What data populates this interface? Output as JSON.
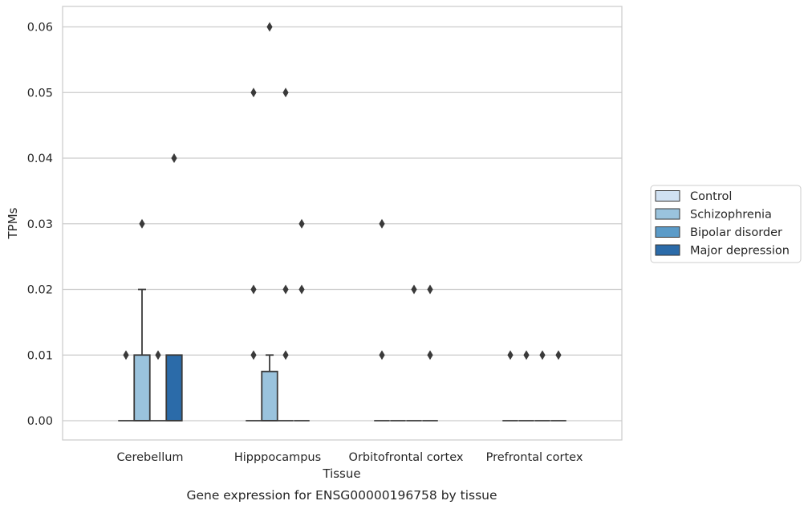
{
  "chart_data": {
    "type": "box",
    "title": "",
    "caption": "Gene expression for ENSG00000196758 by tissue",
    "xlabel": "Tissue",
    "ylabel": "TPMs",
    "ylim": [
      -0.003,
      0.063
    ],
    "yticks": [
      "0.00",
      "0.01",
      "0.02",
      "0.03",
      "0.04",
      "0.05",
      "0.06"
    ],
    "categories": [
      "Cerebellum",
      "Hipppocampus",
      "Orbitofrontal cortex",
      "Prefrontal cortex"
    ],
    "grid": "horizontal",
    "legend_position": "right",
    "series": [
      {
        "name": "Control",
        "color": "#d0e1f2",
        "boxes": [
          {
            "q1": 0,
            "median": 0,
            "q3": 0,
            "whisker_low": 0,
            "whisker_high": 0,
            "outliers": [
              0.01
            ]
          },
          {
            "q1": 0,
            "median": 0,
            "q3": 0,
            "whisker_low": 0,
            "whisker_high": 0,
            "outliers": [
              0.01,
              0.02,
              0.05
            ]
          },
          {
            "q1": 0,
            "median": 0,
            "q3": 0,
            "whisker_low": 0,
            "whisker_high": 0,
            "outliers": [
              0.01,
              0.03
            ]
          },
          {
            "q1": 0,
            "median": 0,
            "q3": 0,
            "whisker_low": 0,
            "whisker_high": 0,
            "outliers": [
              0.01
            ]
          }
        ]
      },
      {
        "name": "Schizophrenia",
        "color": "#9ac3dd",
        "boxes": [
          {
            "q1": 0,
            "median": 0,
            "q3": 0.01,
            "whisker_low": 0,
            "whisker_high": 0.02,
            "outliers": [
              0.03
            ]
          },
          {
            "q1": 0,
            "median": 0,
            "q3": 0.0075,
            "whisker_low": 0,
            "whisker_high": 0.01,
            "outliers": [
              0.06
            ]
          },
          {
            "q1": 0,
            "median": 0,
            "q3": 0,
            "whisker_low": 0,
            "whisker_high": 0,
            "outliers": []
          },
          {
            "q1": 0,
            "median": 0,
            "q3": 0,
            "whisker_low": 0,
            "whisker_high": 0,
            "outliers": [
              0.01
            ]
          }
        ]
      },
      {
        "name": "Bipolar disorder",
        "color": "#5b9bc8",
        "boxes": [
          {
            "q1": 0,
            "median": 0,
            "q3": 0,
            "whisker_low": 0,
            "whisker_high": 0,
            "outliers": [
              0.01
            ]
          },
          {
            "q1": 0,
            "median": 0,
            "q3": 0,
            "whisker_low": 0,
            "whisker_high": 0,
            "outliers": [
              0.01,
              0.02,
              0.05
            ]
          },
          {
            "q1": 0,
            "median": 0,
            "q3": 0,
            "whisker_low": 0,
            "whisker_high": 0,
            "outliers": [
              0.02
            ]
          },
          {
            "q1": 0,
            "median": 0,
            "q3": 0,
            "whisker_low": 0,
            "whisker_high": 0,
            "outliers": [
              0.01
            ]
          }
        ]
      },
      {
        "name": "Major depression",
        "color": "#2b6ba9",
        "boxes": [
          {
            "q1": 0,
            "median": 0,
            "q3": 0.01,
            "whisker_low": 0,
            "whisker_high": 0.01,
            "outliers": [
              0.04
            ]
          },
          {
            "q1": 0,
            "median": 0,
            "q3": 0,
            "whisker_low": 0,
            "whisker_high": 0,
            "outliers": [
              0.02,
              0.03
            ]
          },
          {
            "q1": 0,
            "median": 0,
            "q3": 0,
            "whisker_low": 0,
            "whisker_high": 0,
            "outliers": [
              0.01,
              0.02
            ]
          },
          {
            "q1": 0,
            "median": 0,
            "q3": 0,
            "whisker_low": 0,
            "whisker_high": 0,
            "outliers": [
              0.01
            ]
          }
        ]
      }
    ]
  }
}
